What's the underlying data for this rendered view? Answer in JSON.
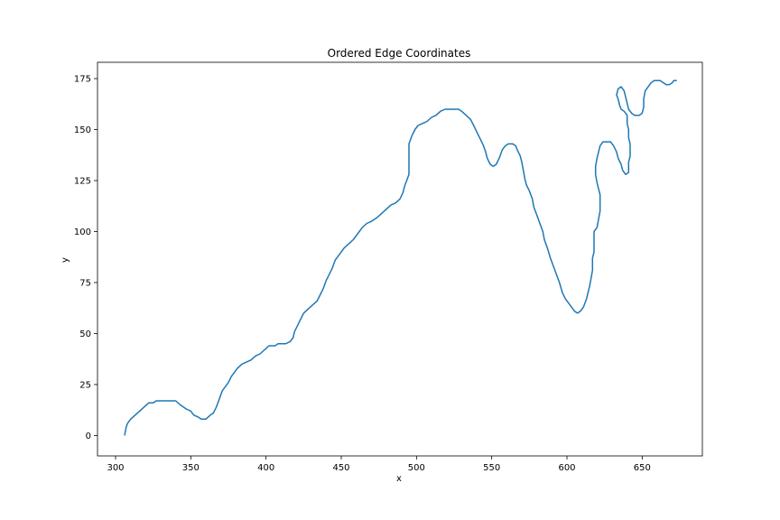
{
  "chart_data": {
    "type": "line",
    "title": "Ordered Edge Coordinates",
    "xlabel": "x",
    "ylabel": "y",
    "xlim": [
      288,
      690
    ],
    "ylim": [
      -10,
      183
    ],
    "xticks": [
      300,
      350,
      400,
      450,
      500,
      550,
      600,
      650
    ],
    "yticks": [
      0,
      25,
      50,
      75,
      100,
      125,
      150,
      175
    ],
    "grid": false,
    "series": [
      {
        "color": "#1f77b4",
        "points": [
          [
            306,
            0
          ],
          [
            307,
            4
          ],
          [
            308,
            6
          ],
          [
            310,
            8
          ],
          [
            313,
            10
          ],
          [
            316,
            12
          ],
          [
            319,
            14
          ],
          [
            322,
            16
          ],
          [
            325,
            16
          ],
          [
            327,
            17
          ],
          [
            333,
            17
          ],
          [
            340,
            17
          ],
          [
            343,
            15
          ],
          [
            347,
            13
          ],
          [
            350,
            12
          ],
          [
            352,
            10
          ],
          [
            355,
            9
          ],
          [
            357,
            8
          ],
          [
            360,
            8
          ],
          [
            363,
            10
          ],
          [
            365,
            11
          ],
          [
            367,
            14
          ],
          [
            369,
            18
          ],
          [
            371,
            22
          ],
          [
            373,
            24
          ],
          [
            375,
            26
          ],
          [
            377,
            29
          ],
          [
            379,
            31
          ],
          [
            381,
            33
          ],
          [
            384,
            35
          ],
          [
            387,
            36
          ],
          [
            390,
            37
          ],
          [
            393,
            39
          ],
          [
            396,
            40
          ],
          [
            399,
            42
          ],
          [
            402,
            44
          ],
          [
            406,
            44
          ],
          [
            408,
            45
          ],
          [
            413,
            45
          ],
          [
            416,
            46
          ],
          [
            418,
            48
          ],
          [
            419,
            51
          ],
          [
            421,
            54
          ],
          [
            423,
            57
          ],
          [
            425,
            60
          ],
          [
            428,
            62
          ],
          [
            431,
            64
          ],
          [
            434,
            66
          ],
          [
            436,
            69
          ],
          [
            438,
            72
          ],
          [
            440,
            76
          ],
          [
            442,
            79
          ],
          [
            444,
            82
          ],
          [
            446,
            86
          ],
          [
            448,
            88
          ],
          [
            450,
            90
          ],
          [
            452,
            92
          ],
          [
            455,
            94
          ],
          [
            458,
            96
          ],
          [
            460,
            98
          ],
          [
            462,
            100
          ],
          [
            464,
            102
          ],
          [
            467,
            104
          ],
          [
            470,
            105
          ],
          [
            474,
            107
          ],
          [
            477,
            109
          ],
          [
            480,
            111
          ],
          [
            483,
            113
          ],
          [
            486,
            114
          ],
          [
            489,
            116
          ],
          [
            491,
            119
          ],
          [
            492,
            122
          ],
          [
            494,
            126
          ],
          [
            495,
            128
          ],
          [
            495,
            143
          ],
          [
            497,
            147
          ],
          [
            499,
            150
          ],
          [
            501,
            152
          ],
          [
            504,
            153
          ],
          [
            507,
            154
          ],
          [
            510,
            156
          ],
          [
            513,
            157
          ],
          [
            516,
            159
          ],
          [
            519,
            160
          ],
          [
            522,
            160
          ],
          [
            528,
            160
          ],
          [
            530,
            159
          ],
          [
            533,
            157
          ],
          [
            536,
            155
          ],
          [
            538,
            152
          ],
          [
            540,
            149
          ],
          [
            542,
            146
          ],
          [
            544,
            143
          ],
          [
            546,
            139
          ],
          [
            547,
            136
          ],
          [
            549,
            133
          ],
          [
            551,
            132
          ],
          [
            553,
            133
          ],
          [
            555,
            136
          ],
          [
            557,
            140
          ],
          [
            559,
            142
          ],
          [
            561,
            143
          ],
          [
            564,
            143
          ],
          [
            566,
            142
          ],
          [
            567,
            140
          ],
          [
            569,
            137
          ],
          [
            570,
            134
          ],
          [
            571,
            130
          ],
          [
            572,
            126
          ],
          [
            573,
            123
          ],
          [
            575,
            120
          ],
          [
            577,
            116
          ],
          [
            578,
            112
          ],
          [
            580,
            108
          ],
          [
            582,
            104
          ],
          [
            584,
            100
          ],
          [
            585,
            96
          ],
          [
            587,
            92
          ],
          [
            589,
            87
          ],
          [
            591,
            83
          ],
          [
            593,
            79
          ],
          [
            595,
            75
          ],
          [
            597,
            70
          ],
          [
            599,
            67
          ],
          [
            601,
            65
          ],
          [
            603,
            63
          ],
          [
            605,
            61
          ],
          [
            607,
            60
          ],
          [
            609,
            61
          ],
          [
            611,
            63
          ],
          [
            613,
            67
          ],
          [
            614,
            70
          ],
          [
            615,
            73
          ],
          [
            616,
            77
          ],
          [
            617,
            81
          ],
          [
            617,
            87
          ],
          [
            618,
            90
          ],
          [
            618,
            100
          ],
          [
            620,
            102
          ],
          [
            621,
            106
          ],
          [
            622,
            110
          ],
          [
            622,
            118
          ],
          [
            621,
            121
          ],
          [
            620,
            124
          ],
          [
            619,
            128
          ],
          [
            619,
            132
          ],
          [
            620,
            136
          ],
          [
            621,
            139
          ],
          [
            622,
            142
          ],
          [
            624,
            144
          ],
          [
            627,
            144
          ],
          [
            629,
            144
          ],
          [
            631,
            142
          ],
          [
            633,
            139
          ],
          [
            634,
            136
          ],
          [
            636,
            133
          ],
          [
            637,
            130
          ],
          [
            639,
            128
          ],
          [
            641,
            129
          ],
          [
            641,
            134
          ],
          [
            642,
            137
          ],
          [
            642,
            143
          ],
          [
            641,
            146
          ],
          [
            641,
            150
          ],
          [
            640,
            153
          ],
          [
            640,
            157
          ],
          [
            638,
            159
          ],
          [
            636,
            160
          ],
          [
            635,
            162
          ],
          [
            634,
            165
          ],
          [
            633,
            167
          ],
          [
            634,
            170
          ],
          [
            636,
            171
          ],
          [
            638,
            169
          ],
          [
            639,
            166
          ],
          [
            640,
            163
          ],
          [
            641,
            160
          ],
          [
            643,
            158
          ],
          [
            645,
            157
          ],
          [
            648,
            157
          ],
          [
            650,
            158
          ],
          [
            651,
            161
          ],
          [
            651,
            165
          ],
          [
            652,
            169
          ],
          [
            654,
            171
          ],
          [
            656,
            173
          ],
          [
            658,
            174
          ],
          [
            662,
            174
          ],
          [
            664,
            173
          ],
          [
            666,
            172
          ],
          [
            668,
            172
          ],
          [
            670,
            173
          ],
          [
            671,
            174
          ],
          [
            673,
            174
          ]
        ]
      }
    ]
  }
}
